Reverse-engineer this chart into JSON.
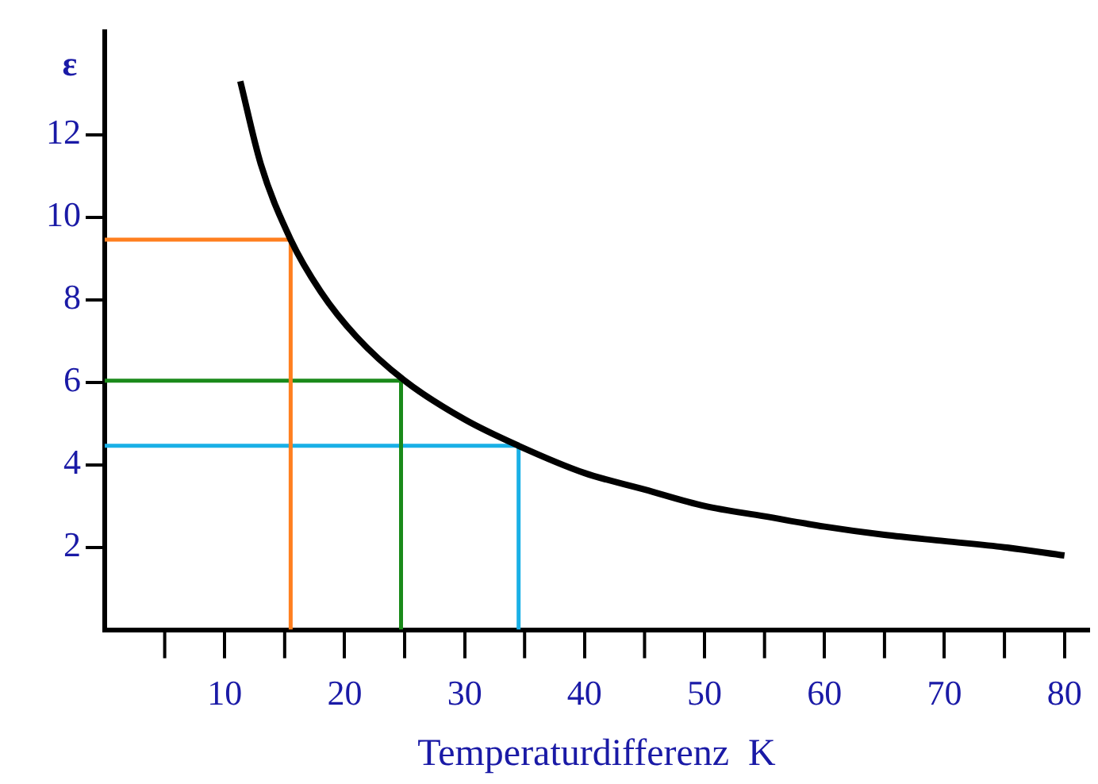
{
  "chart_data": {
    "type": "line",
    "xlabel": "Temperaturdifferenz  K",
    "ylabel": "ε",
    "xlim": [
      0,
      82
    ],
    "ylim": [
      0,
      14.5
    ],
    "xticks": [
      10,
      20,
      30,
      40,
      50,
      60,
      70,
      80
    ],
    "yticks": [
      2,
      4,
      6,
      8,
      10,
      12
    ],
    "grid": false,
    "legend": false,
    "marker": "none",
    "line_style": "solid",
    "series": [
      {
        "color": "#000000",
        "x": [
          11.3,
          13,
          15.5,
          18,
          21,
          25,
          30,
          34.5,
          40,
          45,
          50,
          55,
          60,
          65,
          70,
          75,
          80
        ],
        "values": [
          13.3,
          11.3,
          9.46,
          8.2,
          7.1,
          6.04,
          5.1,
          4.46,
          3.8,
          3.4,
          3.0,
          2.75,
          2.5,
          2.3,
          2.15,
          2.0,
          1.8
        ]
      },
      {
        "color": "#ff7f1f",
        "x": [
          0,
          15.5,
          15.5
        ],
        "values": [
          9.46,
          9.46,
          0
        ]
      },
      {
        "color": "#1a8a1a",
        "x": [
          0,
          24.7,
          24.7
        ],
        "values": [
          6.04,
          6.04,
          0
        ]
      },
      {
        "color": "#19b0e6",
        "x": [
          0,
          34.5,
          34.5
        ],
        "values": [
          4.46,
          4.46,
          0
        ]
      }
    ]
  }
}
